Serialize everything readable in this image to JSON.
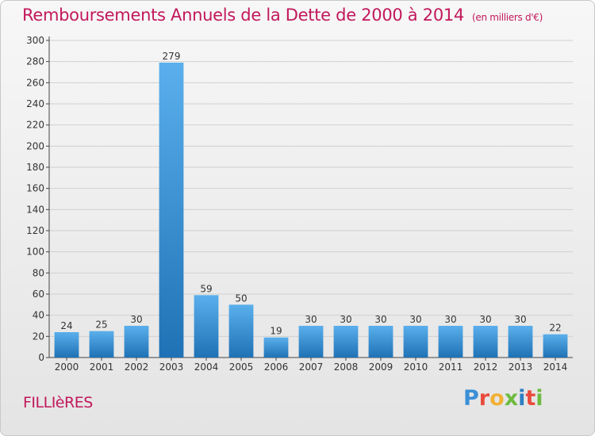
{
  "title": "Remboursements Annuels de la Dette de 2000 à 2014",
  "unit_note": "(en milliers d'€)",
  "town": "FILLIèRES",
  "logo": {
    "text": "Proxiti",
    "colors": [
      "#3a8fd6",
      "#e94b3c",
      "#f2b134",
      "#6dbb3f",
      "#2d7fc1",
      "#e94b3c",
      "#6dbb3f"
    ]
  },
  "colors": {
    "title": "#c2185b",
    "bar_top": "#5aafec",
    "bar_bottom": "#1f72b5",
    "grid": "#d0d0d0"
  },
  "chart_data": {
    "type": "bar",
    "title": "Remboursements Annuels de la Dette de 2000 à 2014",
    "xlabel": "",
    "ylabel": "",
    "categories": [
      "2000",
      "2001",
      "2002",
      "2003",
      "2004",
      "2005",
      "2006",
      "2007",
      "2008",
      "2009",
      "2010",
      "2011",
      "2012",
      "2013",
      "2014"
    ],
    "values": [
      24,
      25,
      30,
      279,
      59,
      50,
      19,
      30,
      30,
      30,
      30,
      30,
      30,
      30,
      22
    ],
    "ylim": [
      0,
      300
    ],
    "yticks": [
      0,
      20,
      40,
      60,
      80,
      100,
      120,
      140,
      160,
      180,
      200,
      220,
      240,
      260,
      280,
      300
    ],
    "grid": true,
    "legend": "none"
  }
}
